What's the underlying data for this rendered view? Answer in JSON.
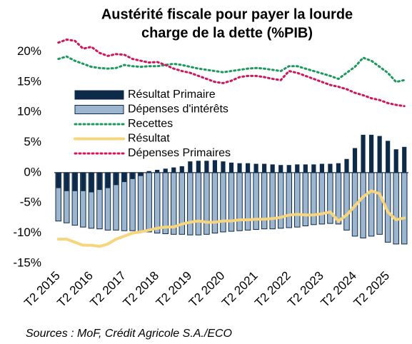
{
  "chart_data": {
    "type": "combo",
    "title": [
      "Austérité fiscale pour payer la lourde",
      "charge de la dette (%PIB)"
    ],
    "source": "Sources : MoF, Crédit Agricole S.A./ECO",
    "categories": [
      "T2 2015",
      null,
      null,
      null,
      "T2 2016",
      null,
      null,
      null,
      "T2 2017",
      null,
      null,
      null,
      "T2 2018",
      null,
      null,
      null,
      "T2 2019",
      null,
      null,
      null,
      "T2 2020",
      null,
      null,
      null,
      "T2 2021",
      null,
      null,
      null,
      "T2 2022",
      null,
      null,
      null,
      "T2 2023",
      null,
      null,
      null,
      "T2 2024",
      null,
      null,
      null,
      "T2 2025",
      null,
      null
    ],
    "ylim": [
      -15,
      23
    ],
    "yticks": [
      {
        "value": -15,
        "label": "-15%"
      },
      {
        "value": -10,
        "label": "-10%"
      },
      {
        "value": -5,
        "label": "-5%"
      },
      {
        "value": 0,
        "label": "0%"
      },
      {
        "value": 5,
        "label": "5%"
      },
      {
        "value": 10,
        "label": "10%"
      },
      {
        "value": 15,
        "label": "15%"
      },
      {
        "value": 20,
        "label": "20%"
      }
    ],
    "legend": "upper left",
    "series": [
      {
        "name": "Résultat Primaire",
        "type": "bar",
        "color": "#0d2a4a",
        "width": 0.45,
        "values": [
          -2.5,
          -3,
          -3,
          -3,
          -3.2,
          -2.8,
          -2.5,
          -2,
          -1.5,
          -1,
          -0.5,
          0.2,
          0.4,
          0.6,
          0.8,
          1,
          1.8,
          1.9,
          1.9,
          2,
          1.8,
          1.6,
          1.5,
          1.5,
          1.4,
          1.4,
          1.3,
          1.2,
          1.2,
          1.3,
          1.3,
          1.3,
          1.4,
          1.4,
          1.5,
          2.2,
          4,
          6.2,
          6.2,
          6,
          5.2,
          3.8,
          4.2
        ]
      },
      {
        "name": "Dépenses d'intérêts",
        "type": "bar",
        "color": "#9db6cf",
        "width": 0.65,
        "values": [
          -8,
          -8.3,
          -8.7,
          -9,
          -9.2,
          -9.3,
          -9.5,
          -9.5,
          -9.6,
          -9.6,
          -9.7,
          -9.8,
          -10,
          -10.1,
          -10.2,
          -10.2,
          -10.3,
          -10.3,
          -10.2,
          -10,
          -9.8,
          -9.7,
          -9.6,
          -9.5,
          -9.4,
          -9.3,
          -9.3,
          -9.2,
          -9.1,
          -9,
          -8.8,
          -8.6,
          -8.5,
          -8.4,
          -8.5,
          -9.5,
          -10.5,
          -10.8,
          -10.5,
          -10.2,
          -11.5,
          -11.8,
          -11.8
        ]
      },
      {
        "name": "Recettes",
        "type": "line",
        "style": "dotted",
        "color": "#1a9a5c",
        "values": [
          18.8,
          19.2,
          18.5,
          18,
          17.5,
          17.3,
          17.2,
          17.3,
          17.8,
          17.6,
          17.5,
          17.6,
          17.6,
          17.8,
          18,
          17.8,
          17.5,
          17.2,
          17,
          16.8,
          16.6,
          16.8,
          17,
          17.2,
          17.3,
          17.2,
          17,
          16.8,
          17.6,
          17.6,
          17.2,
          16.8,
          16.4,
          16,
          15.5,
          16.5,
          17.5,
          19,
          18.5,
          17.5,
          16.5,
          15,
          15.3
        ]
      },
      {
        "name": "Résultat",
        "type": "line",
        "style": "solid",
        "color": "#f7d57d",
        "values": [
          -11,
          -11,
          -11.5,
          -12,
          -12,
          -12.2,
          -11.8,
          -11,
          -10.5,
          -10,
          -9.8,
          -9.5,
          -9.2,
          -9,
          -9,
          -8.5,
          -8.2,
          -8,
          -8.2,
          -8.2,
          -8,
          -8,
          -7.8,
          -7.8,
          -7.7,
          -7.7,
          -7.6,
          -7.4,
          -7,
          -6.9,
          -7,
          -7,
          -6.8,
          -6.5,
          -8,
          -7,
          -5.5,
          -4,
          -3,
          -3.5,
          -6.5,
          -7.8,
          -7.5
        ]
      },
      {
        "name": "Dépenses Primaires",
        "type": "line",
        "style": "dotted",
        "color": "#d4145a",
        "values": [
          21.5,
          22,
          21.8,
          20.5,
          20.8,
          19.8,
          19.3,
          19.6,
          19.5,
          18.8,
          18.5,
          18.2,
          18.3,
          17.8,
          17.2,
          16.8,
          16.5,
          16,
          15.5,
          15,
          14.8,
          15.2,
          15.8,
          16,
          16,
          15.8,
          15.5,
          15.3,
          16.8,
          16.5,
          16,
          15.5,
          15,
          14.5,
          14.2,
          13.8,
          13.2,
          12.8,
          12.3,
          12,
          11.5,
          11.2,
          11
        ]
      }
    ]
  }
}
